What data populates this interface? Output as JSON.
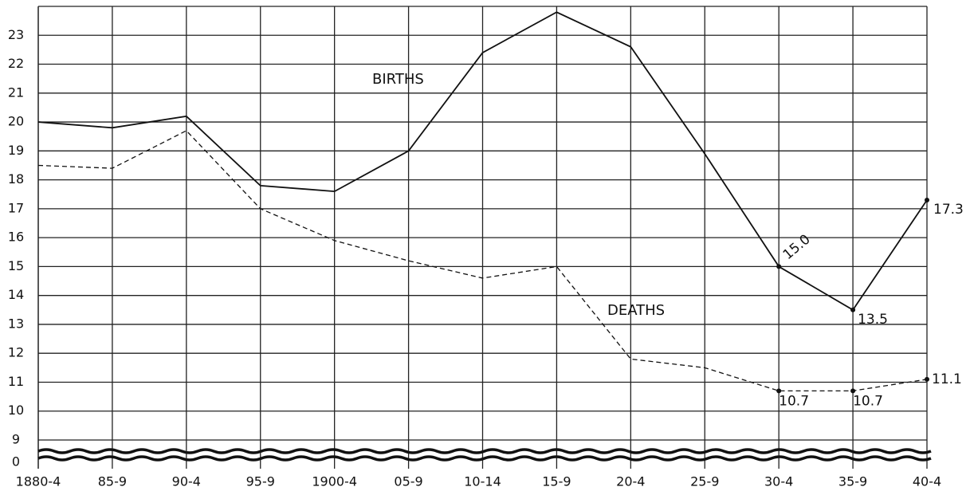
{
  "chart_data": {
    "type": "line",
    "categories": [
      "1880-4",
      "85-9",
      "90-4",
      "95-9",
      "1900-4",
      "05-9",
      "10-14",
      "15-9",
      "20-4",
      "25-9",
      "30-4",
      "35-9",
      "40-4"
    ],
    "series": [
      {
        "name": "BIRTHS",
        "color": "#111111",
        "dash": false,
        "values": [
          20.0,
          19.8,
          20.2,
          17.8,
          17.6,
          19.0,
          22.4,
          23.8,
          22.6,
          18.9,
          15.0,
          13.5,
          17.3
        ],
        "value_labels": [
          null,
          null,
          null,
          null,
          null,
          null,
          null,
          null,
          null,
          null,
          "15.0",
          "13.5",
          "17.3"
        ]
      },
      {
        "name": "DEATHS",
        "color": "#111111",
        "dash": true,
        "values": [
          18.5,
          18.4,
          19.7,
          17.0,
          15.9,
          15.2,
          14.6,
          15.0,
          11.8,
          11.5,
          10.7,
          10.7,
          11.1
        ],
        "value_labels": [
          null,
          null,
          null,
          null,
          null,
          null,
          null,
          null,
          null,
          null,
          "10.7",
          "10.7",
          "11.1"
        ]
      }
    ],
    "ylim": [
      0,
      24
    ],
    "ybreak": [
      0,
      9
    ],
    "yticks": [
      0,
      9,
      10,
      11,
      12,
      13,
      14,
      15,
      16,
      17,
      18,
      19,
      20,
      21,
      22,
      23
    ],
    "grid": true
  }
}
